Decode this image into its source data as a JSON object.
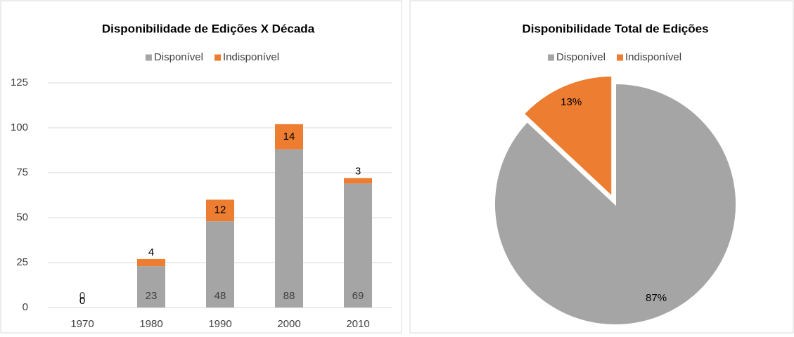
{
  "chart_data": [
    {
      "type": "bar",
      "stacked": true,
      "title": "Disponibilidade de Edições X Década",
      "categories": [
        "1970",
        "1980",
        "1990",
        "2000",
        "2010"
      ],
      "series": [
        {
          "name": "Disponível",
          "color": "#a5a5a5",
          "values": [
            0,
            23,
            48,
            88,
            69
          ]
        },
        {
          "name": "Indisponível",
          "color": "#ed7d31",
          "values": [
            0,
            4,
            12,
            14,
            3
          ]
        }
      ],
      "ylim": [
        0,
        125
      ],
      "yticks": [
        0,
        25,
        50,
        75,
        100,
        125
      ],
      "grid": true,
      "legend": "top"
    },
    {
      "type": "pie",
      "title": "Disponibilidade Total de Edições",
      "categories": [
        "Disponível",
        "Indisponível"
      ],
      "values": [
        87,
        13
      ],
      "value_labels": [
        "87%",
        "13%"
      ],
      "colors": [
        "#a5a5a5",
        "#ed7d31"
      ],
      "legend": "top"
    }
  ]
}
